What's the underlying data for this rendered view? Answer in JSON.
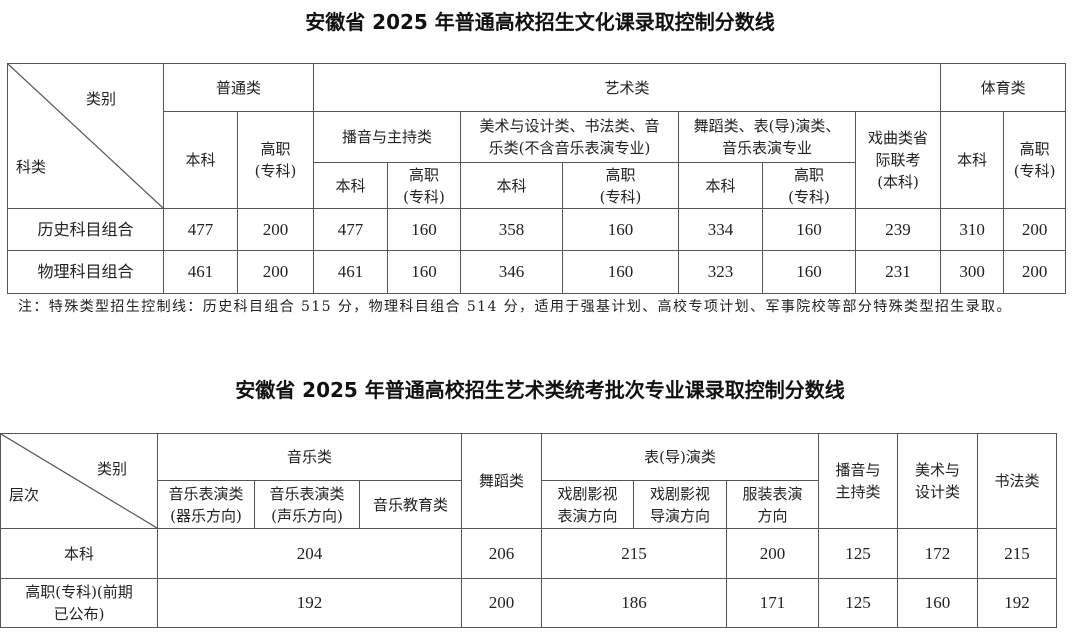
{
  "table1": {
    "title": "安徽省 2025 年普通高校招生文化课录取控制分数线",
    "corner_top": "类别",
    "corner_bottom": "科类",
    "groups": {
      "general": "普通类",
      "art": "艺术类",
      "sports": "体育类"
    },
    "art_sub": {
      "broadcast": "播音与主持类",
      "fine_art": "美术与设计类、书法类、音乐类(不含音乐表演专业)",
      "dance": "舞蹈类、表(导)演类、音乐表演专业",
      "opera": "戏曲类省际联考(本科)"
    },
    "level_bk": "本科",
    "level_gz": "高职",
    "level_gz2": "(专科)",
    "rows": [
      {
        "label": "历史科目组合",
        "values": [
          "477",
          "200",
          "477",
          "160",
          "358",
          "160",
          "334",
          "160",
          "239",
          "310",
          "200"
        ]
      },
      {
        "label": "物理科目组合",
        "values": [
          "461",
          "200",
          "461",
          "160",
          "346",
          "160",
          "323",
          "160",
          "231",
          "300",
          "200"
        ]
      }
    ],
    "note": "注：特殊类型招生控制线：历史科目组合 515 分，物理科目组合 514 分，适用于强基计划、高校专项计划、军事院校等部分特殊类型招生录取。"
  },
  "table2": {
    "title": "安徽省 2025 年普通高校招生艺术类统考批次专业课录取控制分数线",
    "corner_top": "类别",
    "corner_bottom": "层次",
    "music": "音乐类",
    "music_sub": [
      "音乐表演类(器乐方向)",
      "音乐表演类(声乐方向)",
      "音乐教育类"
    ],
    "dance": "舞蹈类",
    "acting": "表(导)演类",
    "acting_sub": [
      "戏剧影视表演方向",
      "戏剧影视导演方向",
      "服装表演方向"
    ],
    "broadcast": "播音与主持类",
    "fine_art": "美术与设计类",
    "calligraphy": "书法类",
    "rows": [
      {
        "label": "本科",
        "music": "204",
        "dance": "206",
        "acting": "215",
        "costume": "200",
        "broadcast": "125",
        "fine_art": "172",
        "calligraphy": "215"
      },
      {
        "label": "高职(专科)(前期已公布)",
        "music": "192",
        "dance": "200",
        "acting": "186",
        "costume": "171",
        "broadcast": "125",
        "fine_art": "160",
        "calligraphy": "192"
      }
    ]
  }
}
